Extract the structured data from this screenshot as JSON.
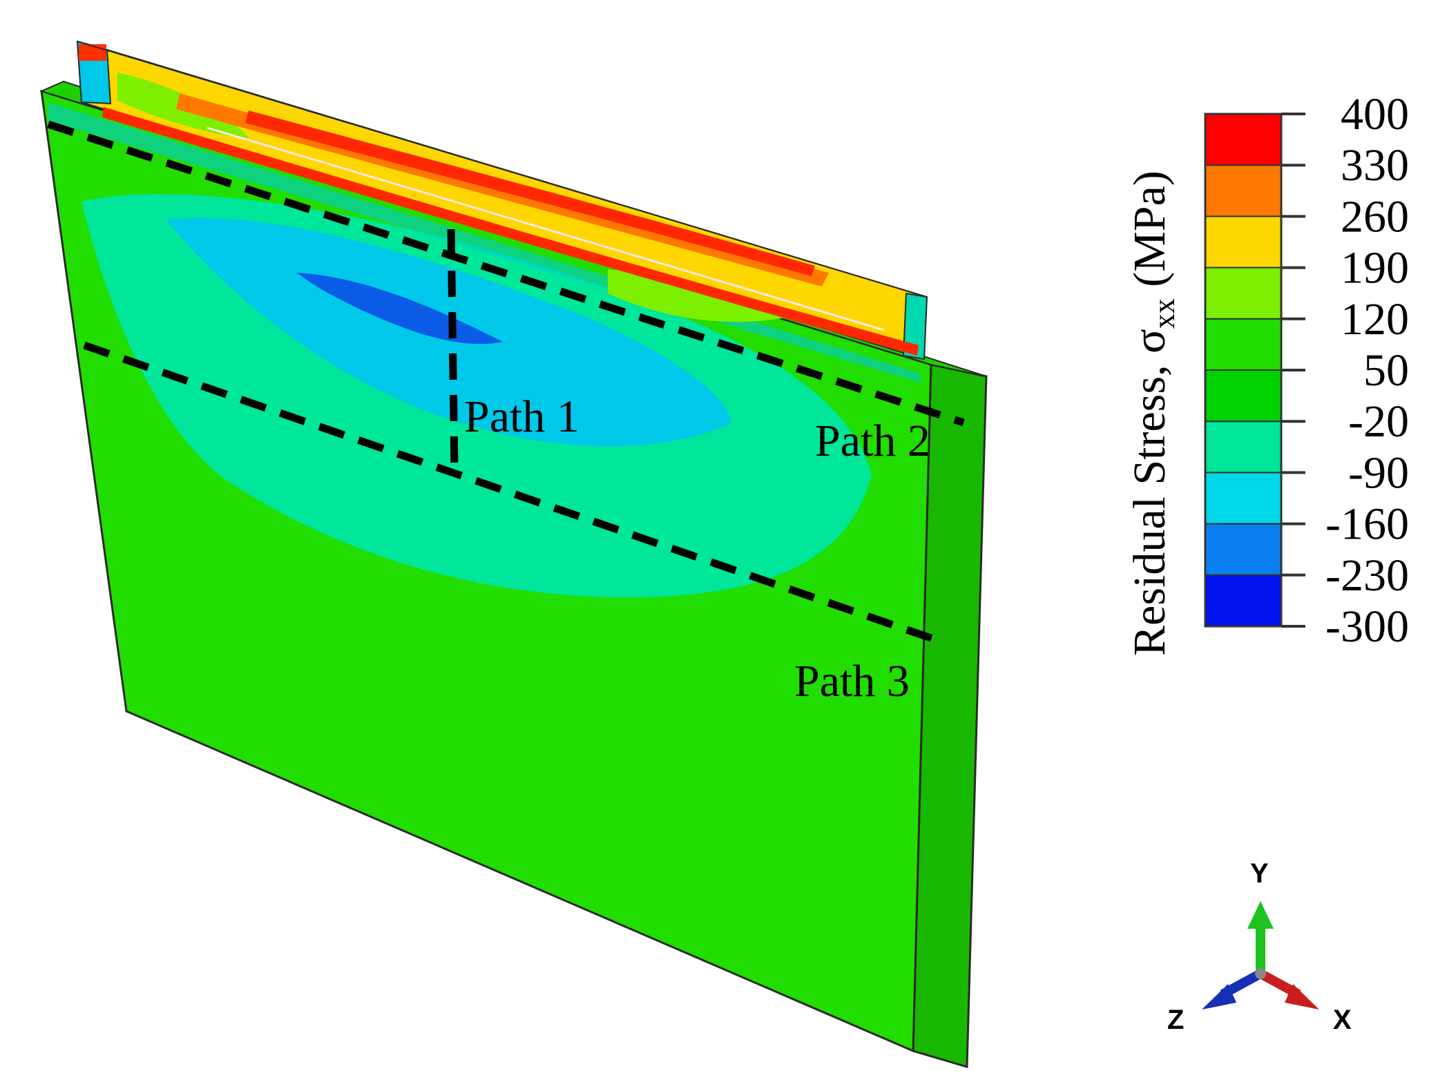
{
  "paths": [
    {
      "label": "Path 1"
    },
    {
      "label": "Path 2"
    },
    {
      "label": "Path 3"
    }
  ],
  "colorbar": {
    "title_main": "Residual Stress, σ",
    "title_sub": "xx",
    "title_unit": " (MPa)",
    "ticks": [
      "400",
      "330",
      "260",
      "190",
      "120",
      "50",
      "-20",
      "-90",
      "-160",
      "-230",
      "-300"
    ],
    "band_colors": [
      "#ff0000",
      "#ff7800",
      "#ffd700",
      "#7cf000",
      "#22dd00",
      "#00d200",
      "#00e69a",
      "#00d8e8",
      "#0a80f0",
      "#0014f0"
    ]
  },
  "triad": {
    "y_label": "Y",
    "z_label": "Z",
    "x_label": "X",
    "y_color": "#1ec31e",
    "z_color": "#1630b8",
    "x_color": "#c81e1e"
  },
  "contour_colors": {
    "plate_base": "#22dd00",
    "plate_side": "#19b800",
    "weld_tension": "#ffd700",
    "weld_high": "#ff2800",
    "weld_mid": "#ff7800",
    "compression_outer": "#00e69a",
    "compression_mid": "#00c8e8",
    "compression_core": "#0a5ce6"
  }
}
